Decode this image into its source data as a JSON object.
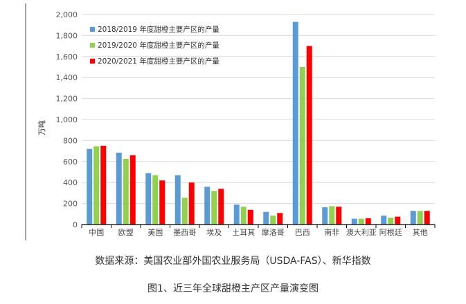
{
  "chart_data": {
    "type": "bar",
    "title": "",
    "ylabel": "万吨",
    "xlabel": "",
    "ylim": [
      0,
      2000
    ],
    "yticks": [
      0,
      200,
      400,
      600,
      800,
      1000,
      1200,
      1400,
      1600,
      1800,
      2000
    ],
    "ytick_labels": [
      "0",
      "200",
      "400",
      "600",
      "800",
      "1,000",
      "1,200",
      "1,400",
      "1,600",
      "1,800",
      "2,000"
    ],
    "grid": true,
    "legend_position": "top-left",
    "categories": [
      "中国",
      "欧盟",
      "美国",
      "墨西哥",
      "埃及",
      "土耳其",
      "摩洛哥",
      "巴西",
      "南非",
      "澳大利亚",
      "阿根廷",
      "其他"
    ],
    "series": [
      {
        "name": "2018/2019 年度甜橙主要产区的产量",
        "color": "#5b9bd5",
        "values": [
          720,
          685,
          490,
          470,
          360,
          190,
          120,
          1930,
          165,
          55,
          85,
          130
        ]
      },
      {
        "name": "2019/2020 年度甜橙主要产区的产量",
        "color": "#92d050",
        "values": [
          745,
          625,
          470,
          255,
          320,
          170,
          85,
          1500,
          175,
          55,
          65,
          130
        ]
      },
      {
        "name": "2020/2021 年度甜橙主要产区的产量",
        "color": "#ff0000",
        "values": [
          750,
          660,
          420,
          400,
          340,
          140,
          110,
          1700,
          170,
          60,
          75,
          130
        ]
      }
    ]
  },
  "captions": {
    "source": "数据来源：美国农业部外国农业服务局（USDA-FAS）、新华指数",
    "figure": "图1、近三年全球甜橙主产区产量演变图"
  }
}
